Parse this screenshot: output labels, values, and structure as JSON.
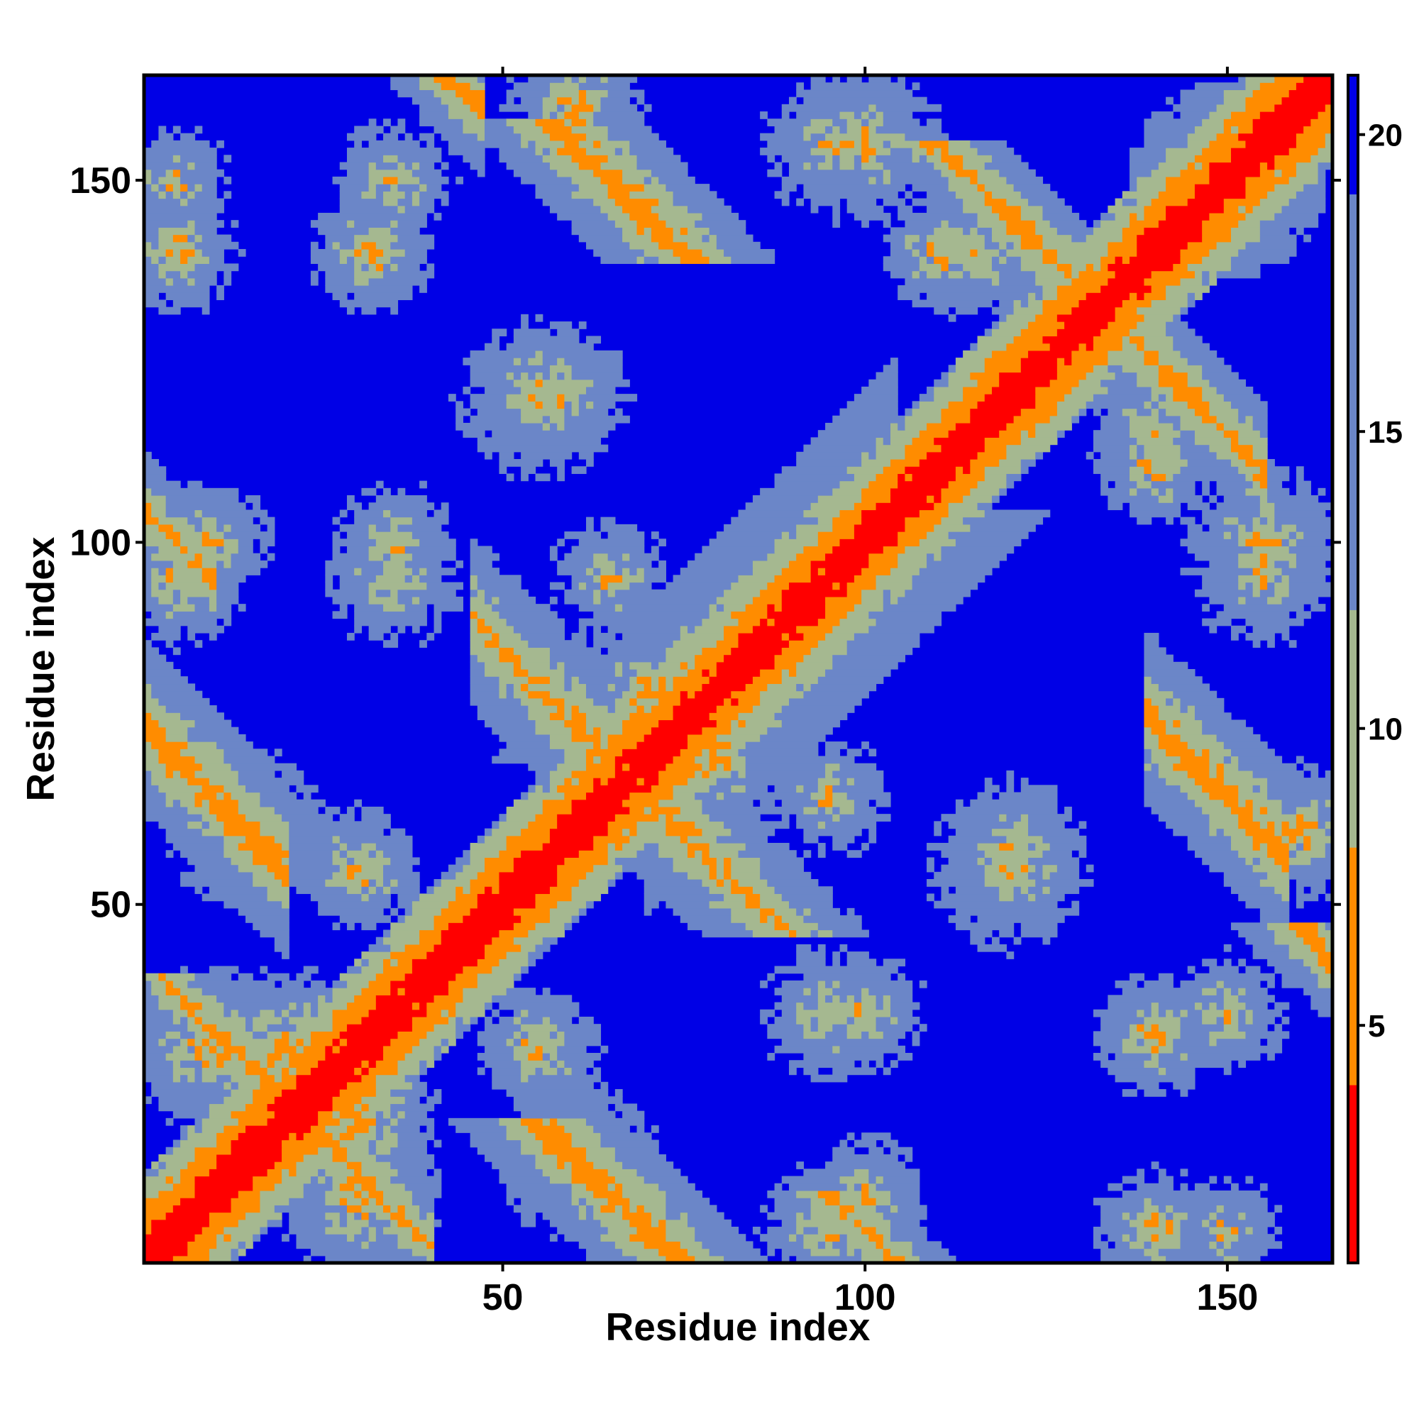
{
  "chart_data": {
    "type": "heatmap",
    "title": "",
    "xlabel": "Residue index",
    "ylabel": "Residue index",
    "n": 164,
    "xlim": [
      1,
      164
    ],
    "ylim": [
      1,
      164
    ],
    "xticks": [
      50,
      100,
      150
    ],
    "yticks": [
      50,
      100,
      150
    ],
    "x_tick_labels": [
      "50",
      "100",
      "150"
    ],
    "y_tick_labels": [
      "50",
      "100",
      "150"
    ],
    "colorbar": {
      "range": [
        1,
        21
      ],
      "ticks": [
        5,
        10,
        15,
        20
      ],
      "tick_labels": [
        "5",
        "10",
        "15",
        "20"
      ],
      "placement": "right"
    },
    "colors": {
      "close": "#ff0000",
      "near": "#ff8c00",
      "mid": "#a5b890",
      "far_mid": "#6b86c8",
      "far": "#0000e6"
    },
    "symmetric": true,
    "contact_bands": [
      {
        "a": 1,
        "b": 1,
        "len": 164,
        "dir": 1,
        "width": 4,
        "min": 1
      },
      {
        "a": 70,
        "b": 70,
        "len": 35,
        "dir": 1,
        "width": 7,
        "min": 6
      },
      {
        "a": 60,
        "b": 75,
        "len": 30,
        "dir": -1,
        "width": 4,
        "min": 7
      },
      {
        "a": 55,
        "b": 20,
        "len": 20,
        "dir": -1,
        "width": 4,
        "min": 6
      },
      {
        "a": 57,
        "b": 158,
        "len": 20,
        "dir": -1,
        "width": 4,
        "min": 6
      },
      {
        "a": 95,
        "b": 10,
        "len": 12,
        "dir": -1,
        "width": 3,
        "min": 7
      },
      {
        "a": 110,
        "b": 155,
        "len": 25,
        "dir": -1,
        "width": 3,
        "min": 6
      },
      {
        "a": 160,
        "b": 47,
        "len": 15,
        "dir": -1,
        "width": 3,
        "min": 6
      },
      {
        "a": 3,
        "b": 40,
        "len": 20,
        "dir": -1,
        "width": 3,
        "min": 7
      },
      {
        "a": 38,
        "b": 37,
        "len": 12,
        "dir": 1,
        "width": 3,
        "min": 7
      }
    ],
    "contact_blobs": [
      {
        "x": 70,
        "y": 80,
        "r": 10,
        "min": 7
      },
      {
        "x": 140,
        "y": 5,
        "r": 9,
        "min": 7
      },
      {
        "x": 95,
        "y": 5,
        "r": 10,
        "min": 8
      },
      {
        "x": 140,
        "y": 32,
        "r": 9,
        "min": 7
      },
      {
        "x": 95,
        "y": 35,
        "r": 10,
        "min": 8
      },
      {
        "x": 120,
        "y": 58,
        "r": 10,
        "min": 8
      },
      {
        "x": 95,
        "y": 65,
        "r": 9,
        "min": 8
      },
      {
        "x": 155,
        "y": 95,
        "r": 10,
        "min": 8
      },
      {
        "x": 140,
        "y": 115,
        "r": 10,
        "min": 8
      },
      {
        "x": 100,
        "y": 155,
        "r": 12,
        "min": 8
      },
      {
        "x": 110,
        "y": 140,
        "r": 8,
        "min": 7
      },
      {
        "x": 150,
        "y": 150,
        "r": 14,
        "min": 7
      },
      {
        "x": 60,
        "y": 160,
        "r": 10,
        "min": 7
      },
      {
        "x": 35,
        "y": 150,
        "r": 9,
        "min": 8
      },
      {
        "x": 5,
        "y": 150,
        "r": 8,
        "min": 8
      },
      {
        "x": 10,
        "y": 100,
        "r": 9,
        "min": 8
      },
      {
        "x": 35,
        "y": 100,
        "r": 9,
        "min": 8
      },
      {
        "x": 55,
        "y": 120,
        "r": 12,
        "min": 8
      },
      {
        "x": 55,
        "y": 30,
        "r": 9,
        "min": 7
      },
      {
        "x": 20,
        "y": 30,
        "r": 12,
        "min": 7
      },
      {
        "x": 15,
        "y": 60,
        "r": 12,
        "min": 8
      },
      {
        "x": 30,
        "y": 10,
        "r": 12,
        "min": 7
      }
    ]
  }
}
